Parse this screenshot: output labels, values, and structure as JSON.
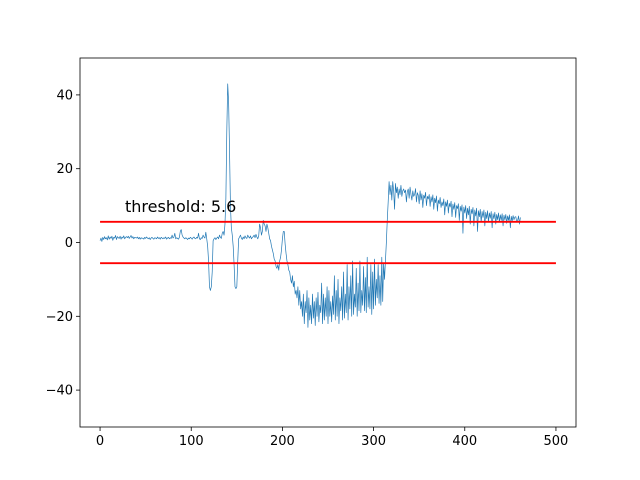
{
  "chart_data": {
    "type": "line",
    "title": "",
    "xlabel": "",
    "ylabel": "",
    "xlim": [
      -22,
      522
    ],
    "ylim": [
      -50,
      50
    ],
    "grid": false,
    "xticks": [
      0,
      100,
      200,
      300,
      400,
      500
    ],
    "xtick_labels": [
      "0",
      "100",
      "200",
      "300",
      "400",
      "500"
    ],
    "yticks": [
      -40,
      -20,
      0,
      20,
      40
    ],
    "ytick_labels": [
      "−40",
      "−20",
      "0",
      "20",
      "40"
    ],
    "signal_color": "#1f77b4",
    "threshold_color": "#ff0000",
    "threshold_value": 5.6,
    "annotation": "threshold: 5.6",
    "series": [
      {
        "values": [
          0.5,
          1.2,
          0.3,
          1.4,
          0.8,
          1.6,
          1.0,
          1.3,
          0.7,
          1.8,
          0.9,
          1.5,
          1.1,
          1.7,
          0.6,
          1.4,
          1.2,
          1.9,
          0.8,
          1.6,
          1.3,
          1.1,
          1.7,
          0.9,
          1.5,
          1.2,
          1.8,
          1.0,
          1.4,
          1.6,
          1.3,
          1.7,
          1.1,
          1.5,
          1.9,
          1.2,
          1.6,
          1.0,
          1.4,
          1.3,
          1.2,
          1.5,
          1.0,
          1.4,
          0.9,
          1.3,
          1.1,
          1.2,
          0.9,
          1.4,
          1.1,
          1.5,
          1.2,
          1.0,
          1.3,
          0.8,
          1.2,
          1.4,
          1.1,
          0.9,
          1.3,
          1.2,
          1.0,
          1.5,
          1.1,
          1.3,
          0.9,
          1.4,
          1.2,
          1.0,
          1.3,
          1.1,
          1.5,
          0.9,
          1.2,
          1.4,
          1.0,
          1.3,
          1.1,
          2.0,
          1.2,
          1.5,
          2.5,
          1.0,
          1.3,
          1.1,
          0.9,
          1.4,
          3.0,
          3.5,
          2.0,
          1.5,
          1.2,
          1.0,
          1.3,
          1.1,
          0.8,
          1.2,
          1.0,
          1.4,
          1.2,
          0.9,
          1.3,
          1.5,
          1.1,
          1.0,
          1.4,
          1.2,
          2.5,
          1.0,
          0.8,
          1.3,
          1.1,
          2.0,
          1.5,
          1.2,
          2.8,
          1.0,
          -1.0,
          -5.0,
          -12.0,
          -13.0,
          -12.0,
          -8.0,
          0.5,
          1.0,
          1.3,
          0.8,
          1.2,
          1.5,
          1.0,
          2.0,
          1.4,
          1.1,
          2.5,
          3.0,
          2.0,
          5.0,
          12.0,
          30.0,
          43.0,
          38.0,
          25.0,
          10.0,
          4.0,
          2.0,
          -1.0,
          -6.0,
          -12.0,
          -12.5,
          -12.0,
          -5.0,
          1.0,
          1.5,
          2.0,
          1.2,
          0.8,
          1.5,
          1.0,
          1.8,
          1.3,
          1.1,
          2.0,
          1.5,
          1.2,
          1.8,
          1.0,
          1.4,
          1.6,
          2.0,
          1.3,
          2.2,
          1.5,
          1.0,
          1.8,
          5.0,
          4.0,
          2.0,
          3.0,
          6.0,
          5.0,
          4.5,
          3.0,
          5.0,
          4.0,
          2.5,
          1.0,
          0.5,
          -1.0,
          -2.0,
          -3.0,
          -4.5,
          -5.0,
          -6.5,
          -7.0,
          -6.0,
          -7.5,
          -5.0,
          -4.0,
          -2.0,
          1.0,
          3.0,
          3.0,
          -0.5,
          -3.0,
          -5.0,
          -6.0,
          -7.5,
          -8.0,
          -10.0,
          -11.0,
          -9.0,
          -12.0,
          -10.5,
          -14.0,
          -13.0,
          -15.0,
          -12.0,
          -17.0,
          -13.0,
          -18.0,
          -16.0,
          -20.0,
          -14.0,
          -22.0,
          -16.0,
          -19.0,
          -13.0,
          -23.0,
          -15.0,
          -21.0,
          -17.0,
          -22.0,
          -14.0,
          -20.5,
          -16.0,
          -22.5,
          -15.0,
          -20.0,
          -13.5,
          -21.5,
          -17.0,
          -19.0,
          -11.0,
          -22.0,
          -14.0,
          -21.0,
          -15.0,
          -20.0,
          -12.0,
          -22.0,
          -13.0,
          -20.0,
          -16.0,
          -21.5,
          -14.5,
          -19.5,
          -9.0,
          -21.0,
          -13.0,
          -20.0,
          -10.0,
          -22.0,
          -15.0,
          -18.5,
          -12.0,
          -21.0,
          -8.0,
          -20.5,
          -14.0,
          -19.0,
          -6.0,
          -21.0,
          -12.0,
          -18.0,
          -9.0,
          -20.0,
          -5.0,
          -19.5,
          -14.0,
          -17.5,
          -7.0,
          -20.0,
          -11.0,
          -18.5,
          -5.0,
          -19.0,
          -13.0,
          -17.0,
          -6.5,
          -18.5,
          -9.5,
          -19.0,
          -4.0,
          -17.5,
          -12.0,
          -18.0,
          -6.0,
          -19.5,
          -8.0,
          -18.0,
          -4.5,
          -17.0,
          -10.0,
          -15.0,
          -6.0,
          -16.5,
          -9.0,
          -17.0,
          -4.0,
          -16.0,
          -5.5,
          -10.0,
          -5.0,
          0.0,
          6.0,
          11.0,
          16.5,
          13.0,
          15.5,
          11.5,
          16.5,
          14.0,
          9.0,
          16.0,
          13.5,
          15.0,
          12.0,
          14.5,
          13.0,
          15.5,
          12.5,
          14.0,
          14.5,
          13.5,
          14.2,
          11.0,
          13.8,
          14.5,
          12.0,
          15.0,
          13.0,
          11.5,
          14.0,
          12.5,
          13.0,
          14.6,
          11.0,
          13.5,
          12.8,
          10.5,
          14.0,
          11.5,
          13.2,
          9.5,
          12.8,
          12.0,
          13.6,
          10.0,
          12.5,
          11.8,
          13.0,
          9.8,
          12.4,
          11.0,
          12.9,
          9.0,
          12.0,
          10.8,
          12.6,
          8.5,
          11.5,
          10.5,
          12.2,
          9.5,
          11.0,
          10.0,
          11.8,
          7.5,
          11.0,
          9.8,
          11.5,
          8.0,
          10.6,
          9.6,
          11.2,
          7.0,
          10.4,
          9.0,
          10.8,
          6.8,
          10.0,
          9.2,
          10.5,
          6.0,
          9.8,
          8.5,
          10.2,
          2.5,
          9.6,
          8.0,
          10.0,
          6.5,
          9.3,
          7.5,
          9.8,
          5.0,
          9.0,
          7.8,
          9.5,
          4.5,
          8.8,
          7.2,
          9.3,
          3.0,
          8.6,
          7.0,
          9.0,
          5.5,
          8.4,
          6.8,
          8.8,
          4.5,
          8.2,
          6.5,
          8.6,
          5.5,
          8.0,
          6.6,
          8.4,
          4.0,
          7.8,
          6.4,
          8.2,
          5.0,
          7.6,
          6.2,
          8.0,
          5.5,
          7.5,
          6.0,
          7.8,
          4.5,
          7.4,
          6.1,
          7.6,
          5.2,
          7.2,
          6.0,
          7.5,
          4.0,
          7.1,
          5.8,
          7.3,
          6.2,
          6.9,
          7.0,
          5.5,
          6.0,
          7.2,
          5.0,
          6.8
        ]
      }
    ],
    "thresholds": [
      {
        "y": 5.6,
        "x_start": 0,
        "x_end": 500
      },
      {
        "y": -5.6,
        "x_start": 0,
        "x_end": 500
      }
    ]
  }
}
